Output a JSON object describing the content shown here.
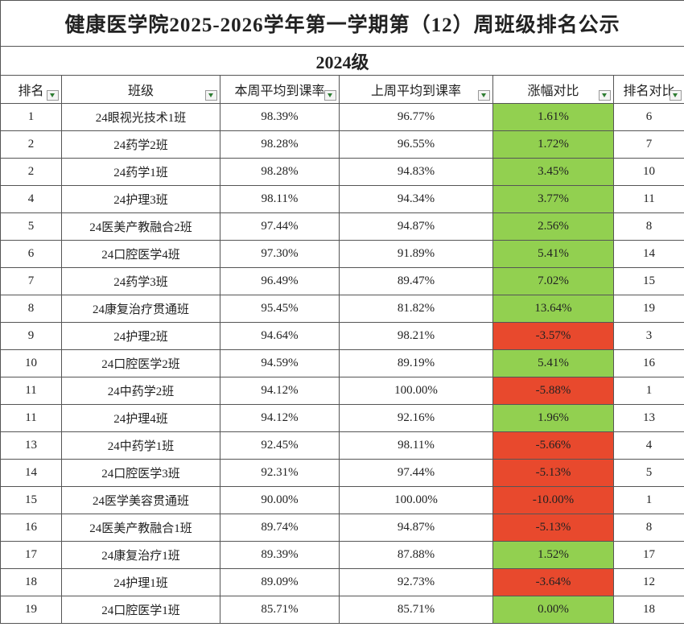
{
  "header": {
    "title": "健康医学院2025-2026学年第一学期第（12）周班级排名公示",
    "subtitle": "2024级"
  },
  "table": {
    "columns": [
      "排名",
      "班级",
      "本周平均到课率",
      "上周平均到课率",
      "涨幅对比",
      "排名对比"
    ],
    "rows": [
      [
        "1",
        "24眼视光技术1班",
        "98.39%",
        "96.77%",
        "1.61%",
        "6"
      ],
      [
        "2",
        "24药学2班",
        "98.28%",
        "96.55%",
        "1.72%",
        "7"
      ],
      [
        "2",
        "24药学1班",
        "98.28%",
        "94.83%",
        "3.45%",
        "10"
      ],
      [
        "4",
        "24护理3班",
        "98.11%",
        "94.34%",
        "3.77%",
        "11"
      ],
      [
        "5",
        "24医美产教融合2班",
        "97.44%",
        "94.87%",
        "2.56%",
        "8"
      ],
      [
        "6",
        "24口腔医学4班",
        "97.30%",
        "91.89%",
        "5.41%",
        "14"
      ],
      [
        "7",
        "24药学3班",
        "96.49%",
        "89.47%",
        "7.02%",
        "15"
      ],
      [
        "8",
        "24康复治疗贯通班",
        "95.45%",
        "81.82%",
        "13.64%",
        "19"
      ],
      [
        "9",
        "24护理2班",
        "94.64%",
        "98.21%",
        "-3.57%",
        "3"
      ],
      [
        "10",
        "24口腔医学2班",
        "94.59%",
        "89.19%",
        "5.41%",
        "16"
      ],
      [
        "11",
        "24中药学2班",
        "94.12%",
        "100.00%",
        "-5.88%",
        "1"
      ],
      [
        "11",
        "24护理4班",
        "94.12%",
        "92.16%",
        "1.96%",
        "13"
      ],
      [
        "13",
        "24中药学1班",
        "92.45%",
        "98.11%",
        "-5.66%",
        "4"
      ],
      [
        "14",
        "24口腔医学3班",
        "92.31%",
        "97.44%",
        "-5.13%",
        "5"
      ],
      [
        "15",
        "24医学美容贯通班",
        "90.00%",
        "100.00%",
        "-10.00%",
        "1"
      ],
      [
        "16",
        "24医美产教融合1班",
        "89.74%",
        "94.87%",
        "-5.13%",
        "8"
      ],
      [
        "17",
        "24康复治疗1班",
        "89.39%",
        "87.88%",
        "1.52%",
        "17"
      ],
      [
        "18",
        "24护理1班",
        "89.09%",
        "92.73%",
        "-3.64%",
        "12"
      ],
      [
        "19",
        "24口腔医学1班",
        "85.71%",
        "85.71%",
        "0.00%",
        "18"
      ]
    ],
    "change_fill": [
      "#92d050",
      "#92d050",
      "#92d050",
      "#92d050",
      "#92d050",
      "#92d050",
      "#92d050",
      "#92d050",
      "#e8492d",
      "#92d050",
      "#e8492d",
      "#92d050",
      "#e8492d",
      "#e8492d",
      "#e8492d",
      "#e8492d",
      "#92d050",
      "#e8492d",
      "#92d050"
    ]
  }
}
